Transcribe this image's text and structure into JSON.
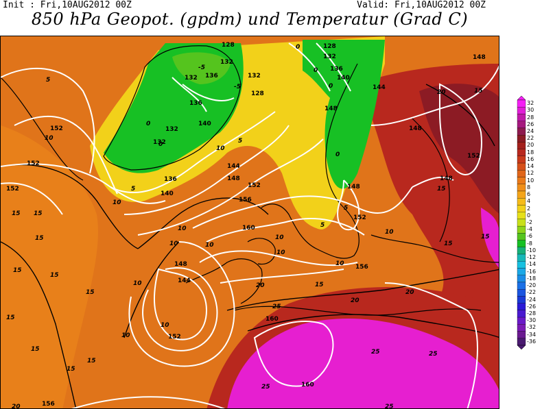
{
  "header": {
    "init": "Init : Fri,10AUG2012 00Z",
    "valid": "Valid: Fri,10AUG2012 00Z",
    "title": "850 hPa Geopot. (gpdm) und Temperatur (Grad C)"
  },
  "colors": {
    "ocean_orange": "#e0741a",
    "warm_red": "#b8281e",
    "hot_magenta": "#e61fd0",
    "cool_yellow": "#f2d11a",
    "cold_green": "#17c024",
    "land_line": "#000000",
    "isoline": "#ffffff"
  },
  "map": {
    "geopotential_labels": [
      "128",
      "132",
      "136",
      "140",
      "144",
      "148",
      "152",
      "156",
      "160"
    ],
    "temperature_labels": [
      "0",
      "5",
      "10",
      "15",
      "20",
      "25"
    ],
    "iso_labels": [
      {
        "t": "128"
      },
      {
        "t": "132"
      },
      {
        "t": "136"
      },
      {
        "t": "140"
      },
      {
        "t": "144"
      },
      {
        "t": "148"
      },
      {
        "t": "152"
      },
      {
        "t": "156"
      },
      {
        "t": "160"
      },
      {
        "t": "10"
      },
      {
        "t": "15"
      },
      {
        "t": "20"
      },
      {
        "t": "25"
      },
      {
        "t": "5"
      },
      {
        "t": "0"
      },
      {
        "t": "-5"
      }
    ]
  },
  "colorbar": {
    "labels": [
      "32",
      "30",
      "28",
      "26",
      "24",
      "22",
      "20",
      "18",
      "16",
      "14",
      "12",
      "10",
      "8",
      "6",
      "4",
      "2",
      "0",
      "-2",
      "-4",
      "-6",
      "-8",
      "-10",
      "-12",
      "-14",
      "-16",
      "-18",
      "-20",
      "-22",
      "-24",
      "-26",
      "-28",
      "-30",
      "-32",
      "-34",
      "-36"
    ],
    "colors": [
      "#f51ff5",
      "#e01fd6",
      "#c01aa8",
      "#a5197e",
      "#8e1a4e",
      "#8c1b24",
      "#a3201c",
      "#b8281e",
      "#c93a1b",
      "#d6501a",
      "#e0661a",
      "#ea7a1a",
      "#f08f1a",
      "#f4a51a",
      "#f5bb1a",
      "#f2d11a",
      "#e6e01a",
      "#c8e01a",
      "#8ed41a",
      "#55c41e",
      "#17c024",
      "#17b07a",
      "#17b8b8",
      "#17c0e0",
      "#1aa8e6",
      "#1a8ce6",
      "#1a70e6",
      "#1a55e0",
      "#1a3ad6",
      "#2a1ad6",
      "#4a1ad0",
      "#6a1ac8",
      "#7a1ab4",
      "#6a1a90",
      "#4a1a70"
    ]
  }
}
